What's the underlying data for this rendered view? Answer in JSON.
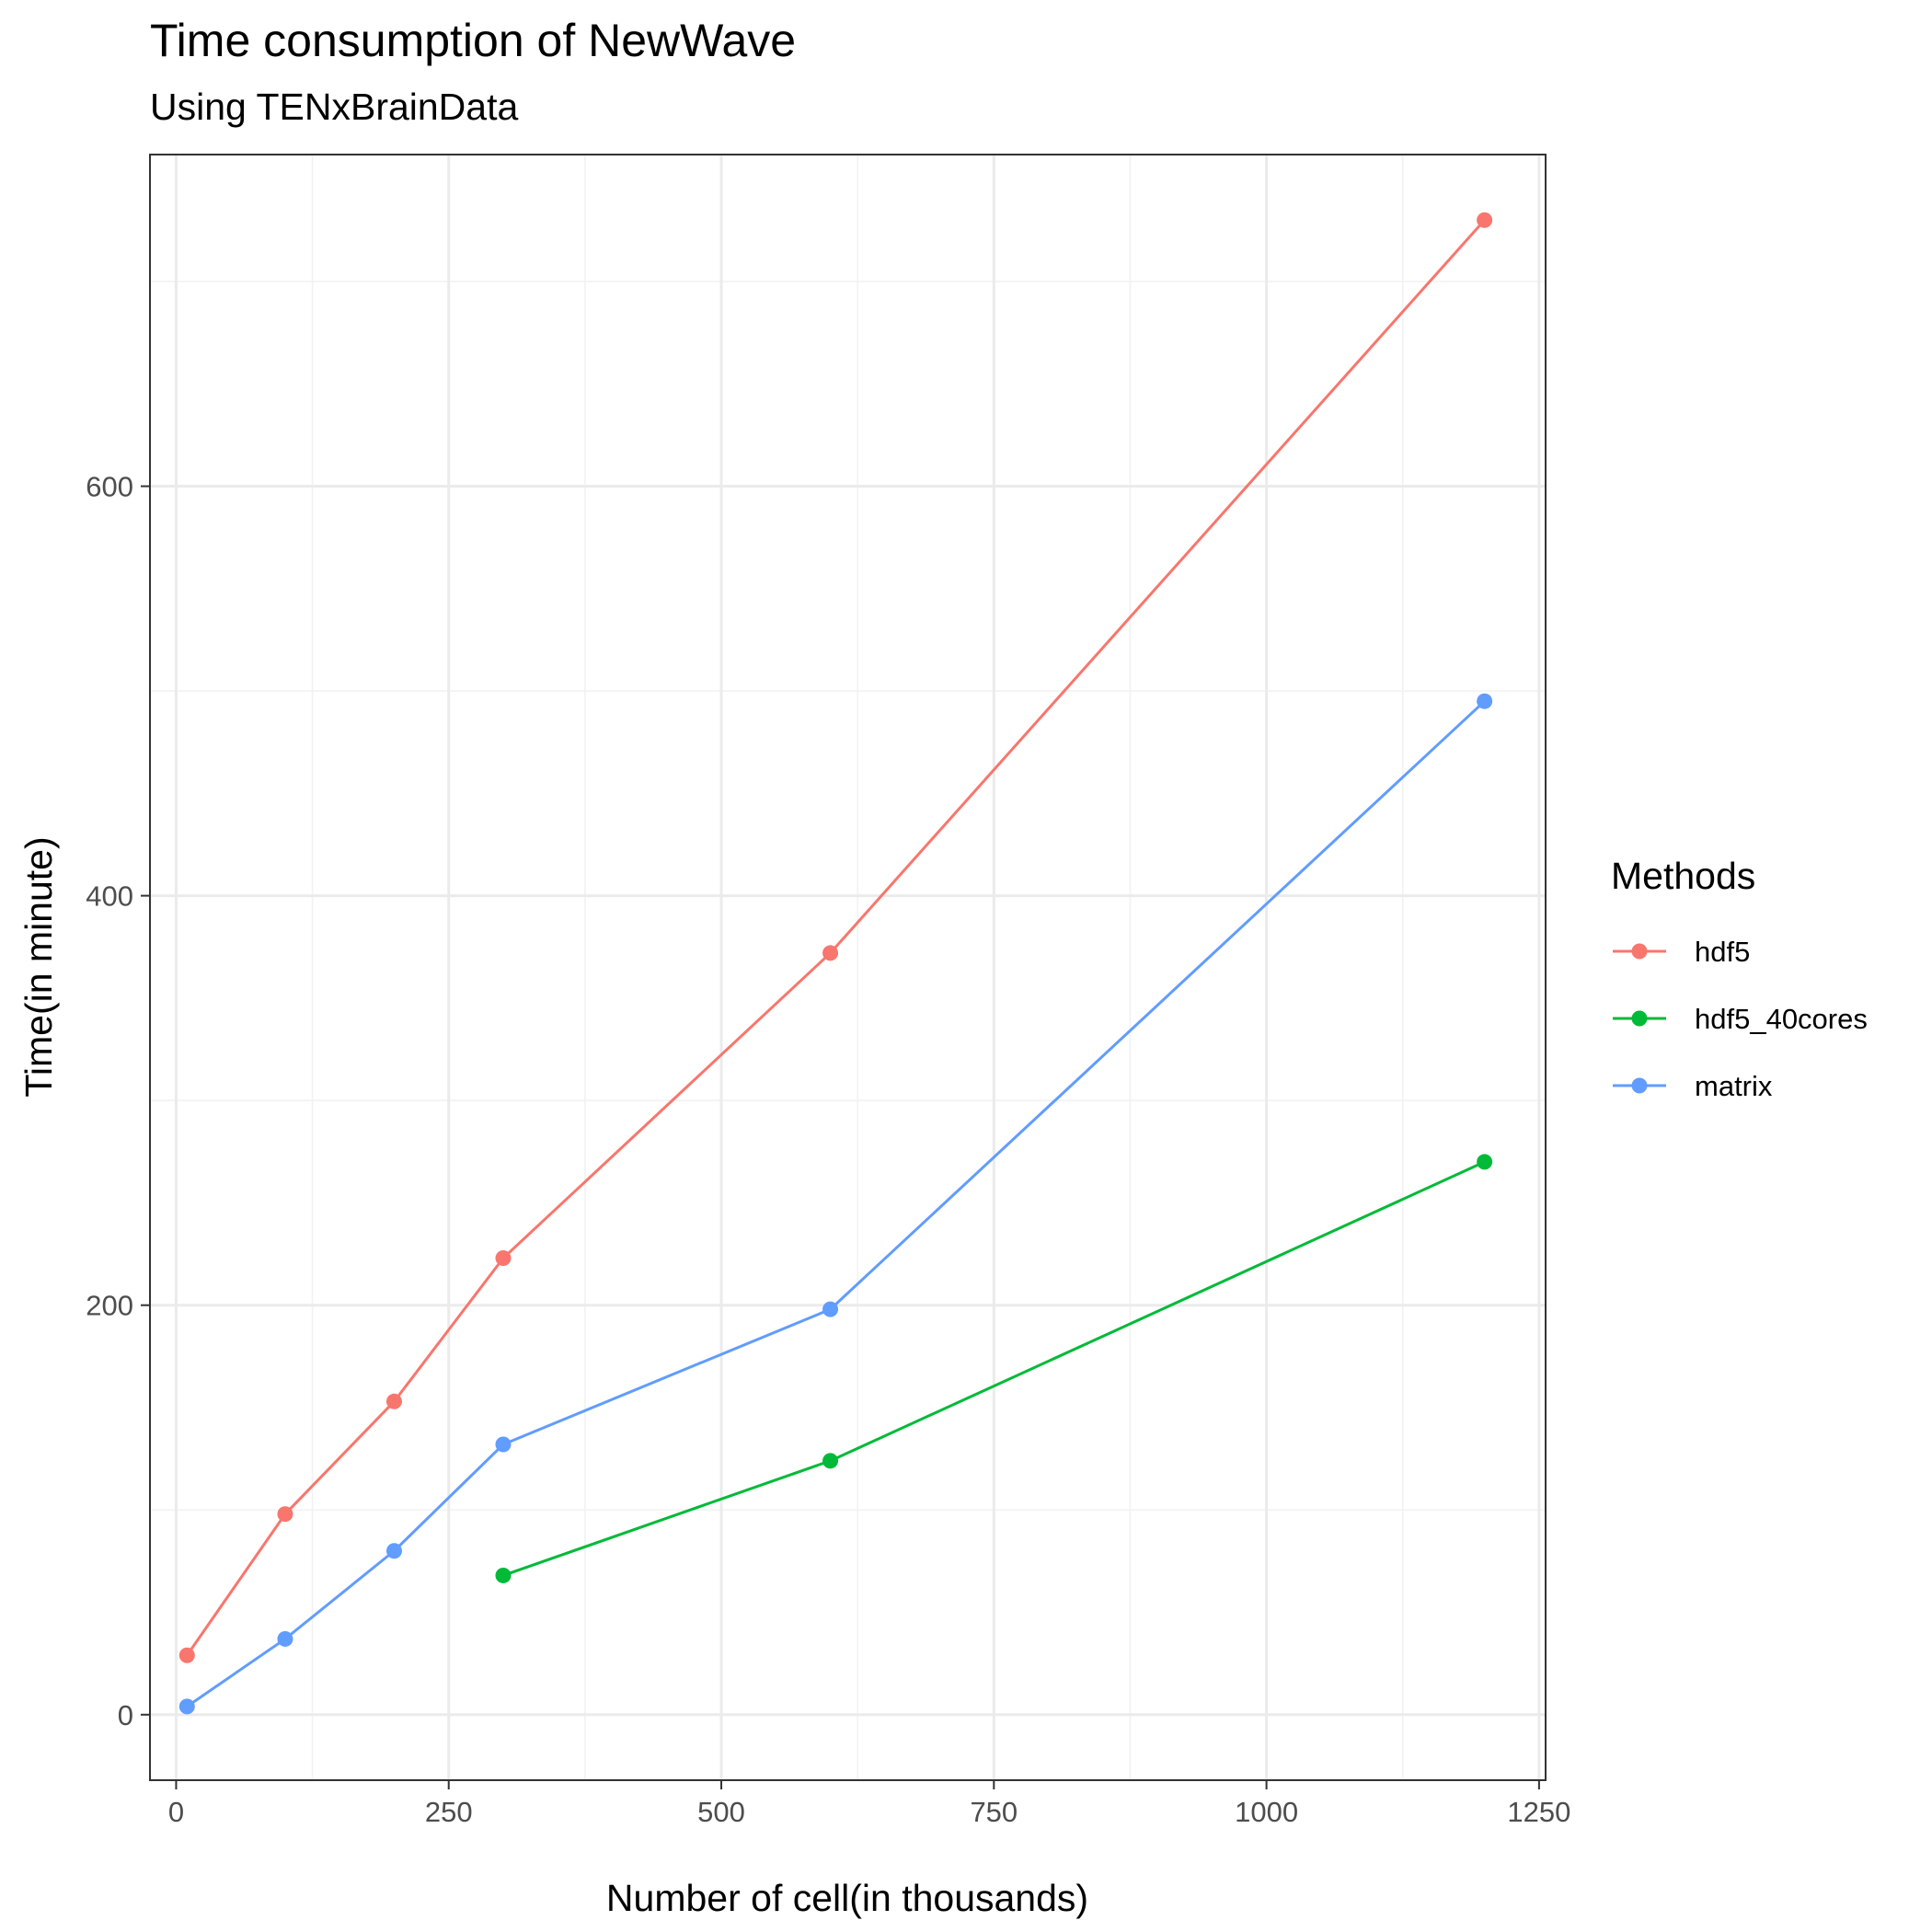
{
  "chart_data": {
    "type": "line",
    "title": "Time consumption of NewWave",
    "subtitle": "Using TENxBrainData",
    "xlabel": "Number of cell(in thousands)",
    "ylabel": "Time(in minute)",
    "xlim": [
      -24,
      1256
    ],
    "ylim": [
      -32,
      762
    ],
    "x_ticks": [
      0,
      250,
      500,
      750,
      1000,
      1250
    ],
    "x_tick_labels": [
      "0",
      "250",
      "500",
      "750",
      "1000",
      "1250"
    ],
    "y_ticks": [
      0,
      200,
      400,
      600
    ],
    "y_tick_labels": [
      "0",
      "200",
      "400",
      "600"
    ],
    "x_minor_ticks": [
      125,
      375,
      625,
      875,
      1125
    ],
    "y_minor_ticks": [
      100,
      300,
      500,
      700
    ],
    "grid": true,
    "legend": {
      "title": "Methods",
      "position": "right"
    },
    "series": [
      {
        "name": "hdf5",
        "color": "#F8766D",
        "x": [
          10,
          100,
          200,
          300,
          600,
          1200
        ],
        "y": [
          29,
          98,
          153,
          223,
          372,
          730
        ]
      },
      {
        "name": "hdf5_40cores",
        "color": "#00BA38",
        "x": [
          300,
          600,
          1200
        ],
        "y": [
          68,
          124,
          270
        ]
      },
      {
        "name": "matrix",
        "color": "#619CFF",
        "x": [
          10,
          100,
          200,
          300,
          600,
          1200
        ],
        "y": [
          4,
          37,
          80,
          132,
          198,
          495
        ]
      }
    ]
  }
}
